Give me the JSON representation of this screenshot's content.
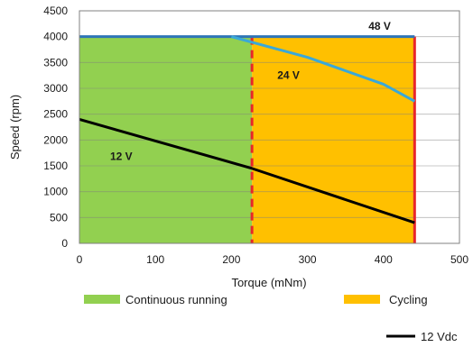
{
  "chart_data": {
    "type": "area",
    "xlabel": "Torque (mNm)",
    "ylabel": "Speed (rpm)",
    "xlim": [
      0,
      500
    ],
    "ylim": [
      0,
      4500
    ],
    "xticks": [
      0,
      100,
      200,
      300,
      400,
      500
    ],
    "yticks": [
      0,
      500,
      1000,
      1500,
      2000,
      2500,
      3000,
      3500,
      4000,
      4500
    ],
    "grid": "horizontal",
    "regions": [
      {
        "name": "Continuous running",
        "x_range": [
          0,
          227
        ],
        "y_max": 4000,
        "color": "#92d050"
      },
      {
        "name": "Cycling",
        "x_range": [
          227,
          441
        ],
        "y_max": 4000,
        "color": "#ffc000"
      }
    ],
    "limits": [
      {
        "x": 227,
        "style": "dashed",
        "color": "#e8262a"
      },
      {
        "x": 441,
        "style": "solid",
        "color": "#e8262a"
      }
    ],
    "series": [
      {
        "name": "48 V",
        "color": "#2e75b6",
        "x": [
          0,
          441
        ],
        "y": [
          4000,
          4000
        ]
      },
      {
        "name": "24 V",
        "color": "#3aa8d8",
        "x": [
          200,
          230,
          300,
          400,
          441
        ],
        "y": [
          4000,
          3880,
          3600,
          3080,
          2750
        ]
      },
      {
        "name": "12 V",
        "color": "#000000",
        "x": [
          0,
          227,
          441
        ],
        "y": [
          2400,
          1450,
          400
        ]
      }
    ],
    "series_labels": [
      {
        "text": "48 V",
        "x": 395,
        "y": 4200
      },
      {
        "text": "24 V",
        "x": 275,
        "y": 3250
      },
      {
        "text": "12 V",
        "x": 55,
        "y": 1680
      }
    ],
    "legend": {
      "entries": [
        {
          "label": "Continuous running",
          "color": "#92d050",
          "kind": "patch"
        },
        {
          "label": "Cycling",
          "color": "#ffc000",
          "kind": "patch"
        },
        {
          "label": "12 Vdc",
          "color": "#000000",
          "kind": "line"
        }
      ]
    }
  }
}
